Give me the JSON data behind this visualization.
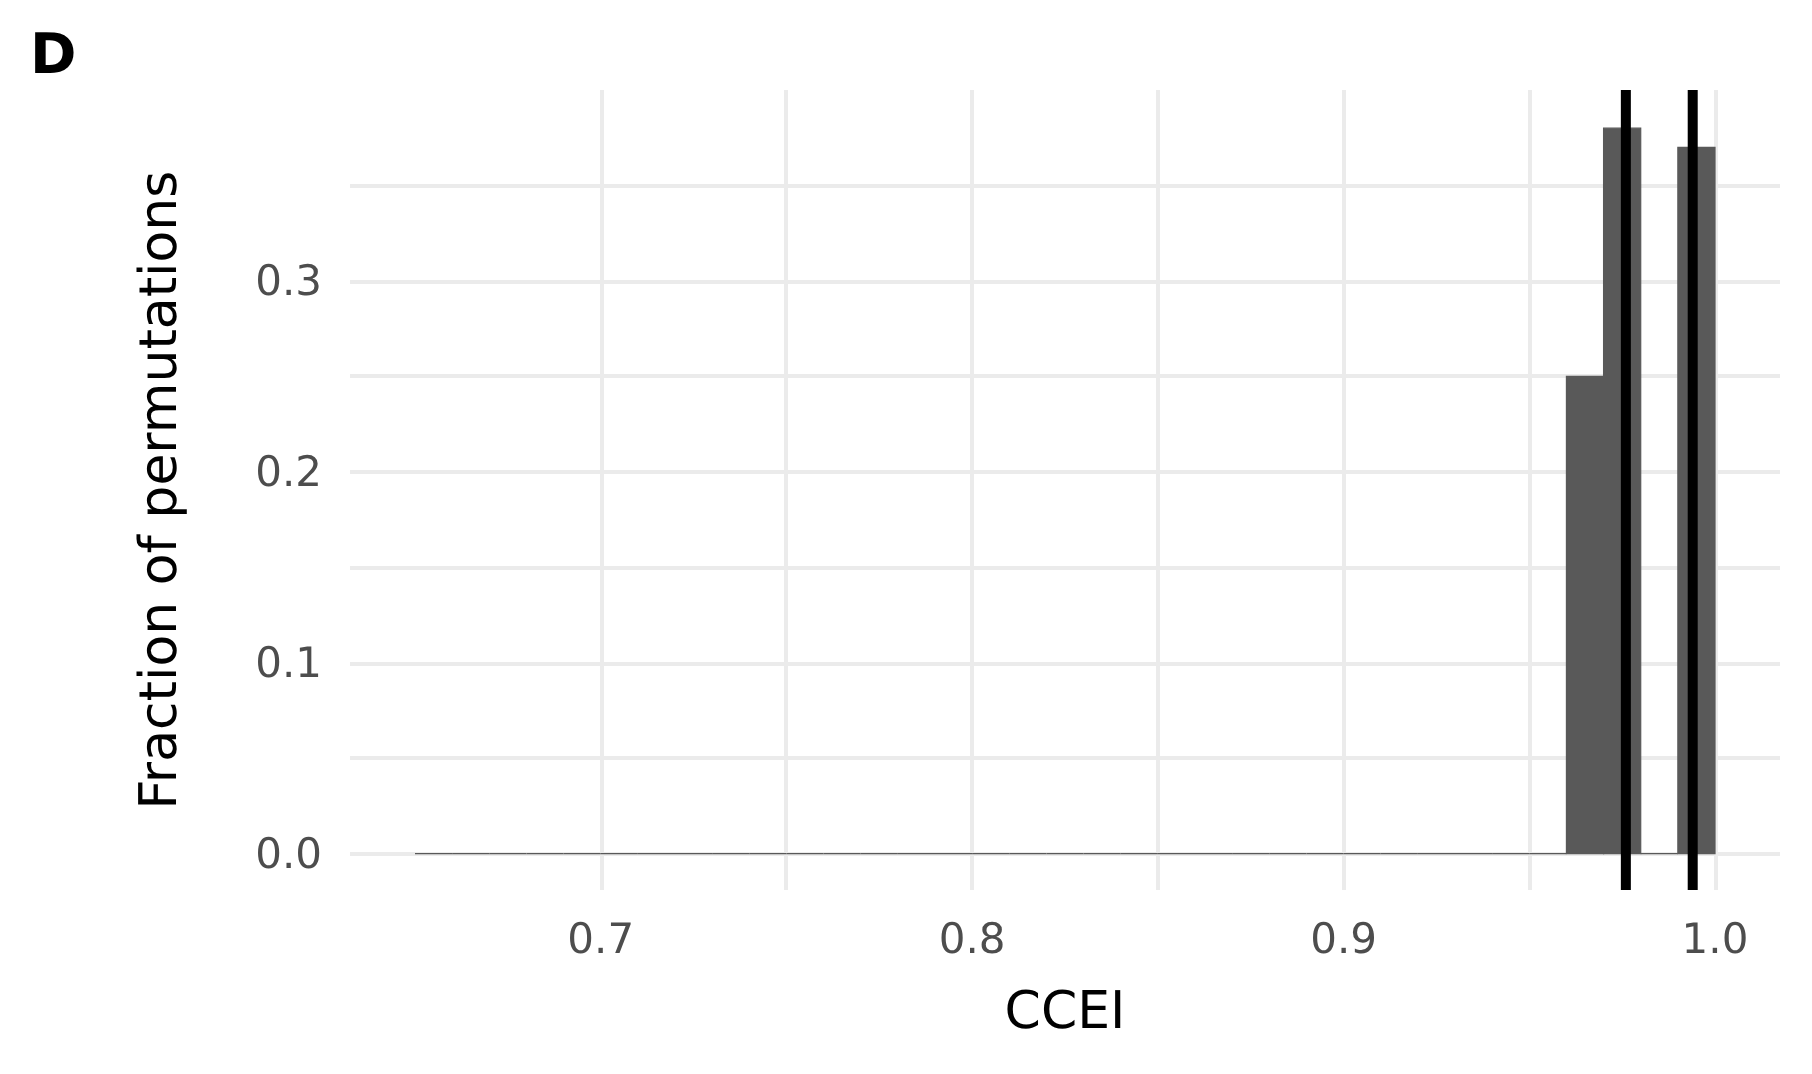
{
  "chart_data": {
    "type": "histogram",
    "title": "D",
    "xlabel": "CCEI",
    "ylabel": "Fraction of permutations",
    "bins": [
      0.65,
      0.66,
      0.67,
      0.68,
      0.69,
      0.7,
      0.71,
      0.72,
      0.73,
      0.74,
      0.75,
      0.76,
      0.77,
      0.78,
      0.79,
      0.8,
      0.81,
      0.82,
      0.83,
      0.84,
      0.85,
      0.86,
      0.87,
      0.88,
      0.89,
      0.9,
      0.91,
      0.92,
      0.93,
      0.94,
      0.95,
      0.96,
      0.97,
      0.98,
      0.99,
      1.0
    ],
    "values": [
      0,
      0,
      0,
      0,
      0,
      0,
      0,
      0,
      0,
      0,
      0,
      0,
      0,
      0,
      0,
      0,
      0,
      0,
      0,
      0,
      0,
      0,
      0,
      0,
      0,
      0,
      0,
      0,
      0,
      0,
      0,
      0.25,
      0.38,
      0,
      0.37
    ],
    "color": "#595959",
    "xlim": [
      0.6325,
      1.0175
    ],
    "xticks": [
      0.7,
      {
        "value": 0.75,
        "label": null
      },
      0.8,
      {
        "value": 0.85,
        "label": null
      },
      0.9,
      {
        "value": 0.95,
        "label": null
      },
      {
        "value": 1,
        "label": "1.0"
      }
    ],
    "ylim": [
      -0.019,
      0.4
    ],
    "yticks": [
      {
        "value": 0,
        "label": "0.0"
      },
      {
        "value": 0.05,
        "label": null
      },
      0.1,
      {
        "value": 0.15,
        "label": null
      },
      0.2,
      {
        "value": 0.25,
        "label": null
      },
      0.3,
      {
        "value": 0.35,
        "label": null
      }
    ],
    "ref_lines": [
      {
        "axis": "x",
        "value": 0.976,
        "color": "#000000"
      },
      {
        "axis": "x",
        "value": 0.994,
        "color": "#000000"
      }
    ],
    "grid": true
  }
}
